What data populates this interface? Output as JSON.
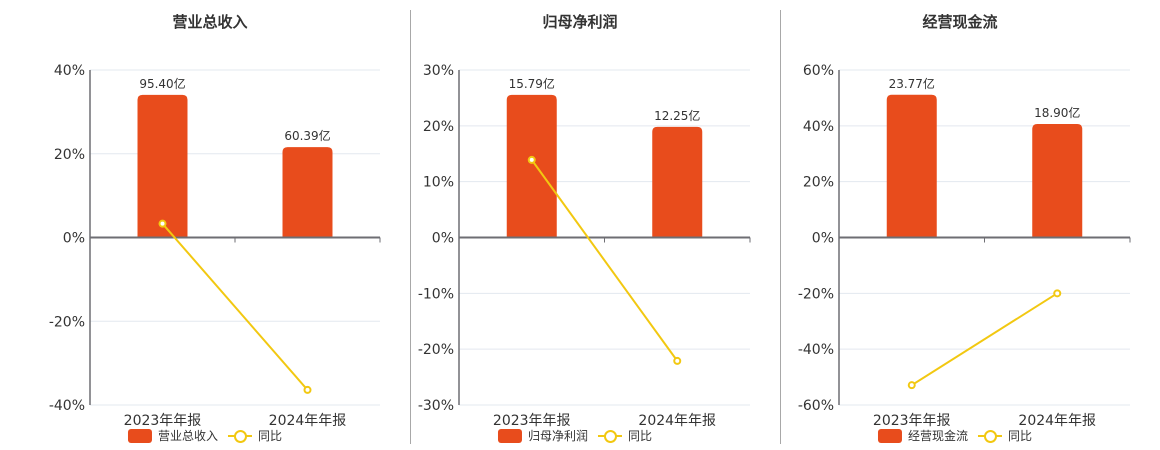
{
  "colors": {
    "bar": "#E84C1C",
    "line": "#F2C811",
    "grid": "#E3E8EF",
    "axis": "#6E6E73",
    "text": "#333333"
  },
  "panels": [
    {
      "title": "营业总收入",
      "legend": {
        "bar_label": "营业总收入",
        "line_label": "同比"
      }
    },
    {
      "title": "归母净利润",
      "legend": {
        "bar_label": "归母净利润",
        "line_label": "同比"
      }
    },
    {
      "title": "经营现金流",
      "legend": {
        "bar_label": "经营现金流",
        "line_label": "同比"
      }
    }
  ],
  "chart_data": [
    {
      "type": "bar+line",
      "title": "营业总收入",
      "categories": [
        "2023年年报",
        "2024年年报"
      ],
      "series": [
        {
          "name": "营业总收入",
          "type": "bar",
          "values": [
            95.4,
            60.39
          ],
          "labels": [
            "95.40亿",
            "60.39亿"
          ],
          "unit": "亿"
        },
        {
          "name": "同比",
          "type": "line",
          "values": [
            3.3,
            -36.4
          ],
          "unit": "%"
        }
      ],
      "yticks": [
        "40%",
        "20%",
        "0%",
        "-20%",
        "-40%"
      ],
      "ylim": [
        -40,
        40
      ],
      "bar_ylim": [
        -112,
        112
      ],
      "grid": true,
      "legend_position": "bottom"
    },
    {
      "type": "bar+line",
      "title": "归母净利润",
      "categories": [
        "2023年年报",
        "2024年年报"
      ],
      "series": [
        {
          "name": "归母净利润",
          "type": "bar",
          "values": [
            15.79,
            12.25
          ],
          "labels": [
            "15.79亿",
            "12.25亿"
          ],
          "unit": "亿"
        },
        {
          "name": "同比",
          "type": "line",
          "values": [
            13.9,
            -22.1
          ],
          "unit": "%"
        }
      ],
      "yticks": [
        "30%",
        "20%",
        "10%",
        "0%",
        "-10%",
        "-20%",
        "-30%"
      ],
      "ylim": [
        -30,
        30
      ],
      "bar_ylim": [
        -18.55,
        18.55
      ],
      "grid": true,
      "legend_position": "bottom"
    },
    {
      "type": "bar+line",
      "title": "经营现金流",
      "categories": [
        "2023年年报",
        "2024年年报"
      ],
      "series": [
        {
          "name": "经营现金流",
          "type": "bar",
          "values": [
            23.77,
            18.9
          ],
          "labels": [
            "23.77亿",
            "18.90亿"
          ],
          "unit": "亿"
        },
        {
          "name": "同比",
          "type": "line",
          "values": [
            -52.9,
            -20.0
          ],
          "unit": "%"
        }
      ],
      "yticks": [
        "60%",
        "40%",
        "20%",
        "0%",
        "-20%",
        "-40%",
        "-60%"
      ],
      "ylim": [
        -60,
        60
      ],
      "bar_ylim": [
        -27.9,
        27.9
      ],
      "grid": true,
      "legend_position": "bottom"
    }
  ]
}
